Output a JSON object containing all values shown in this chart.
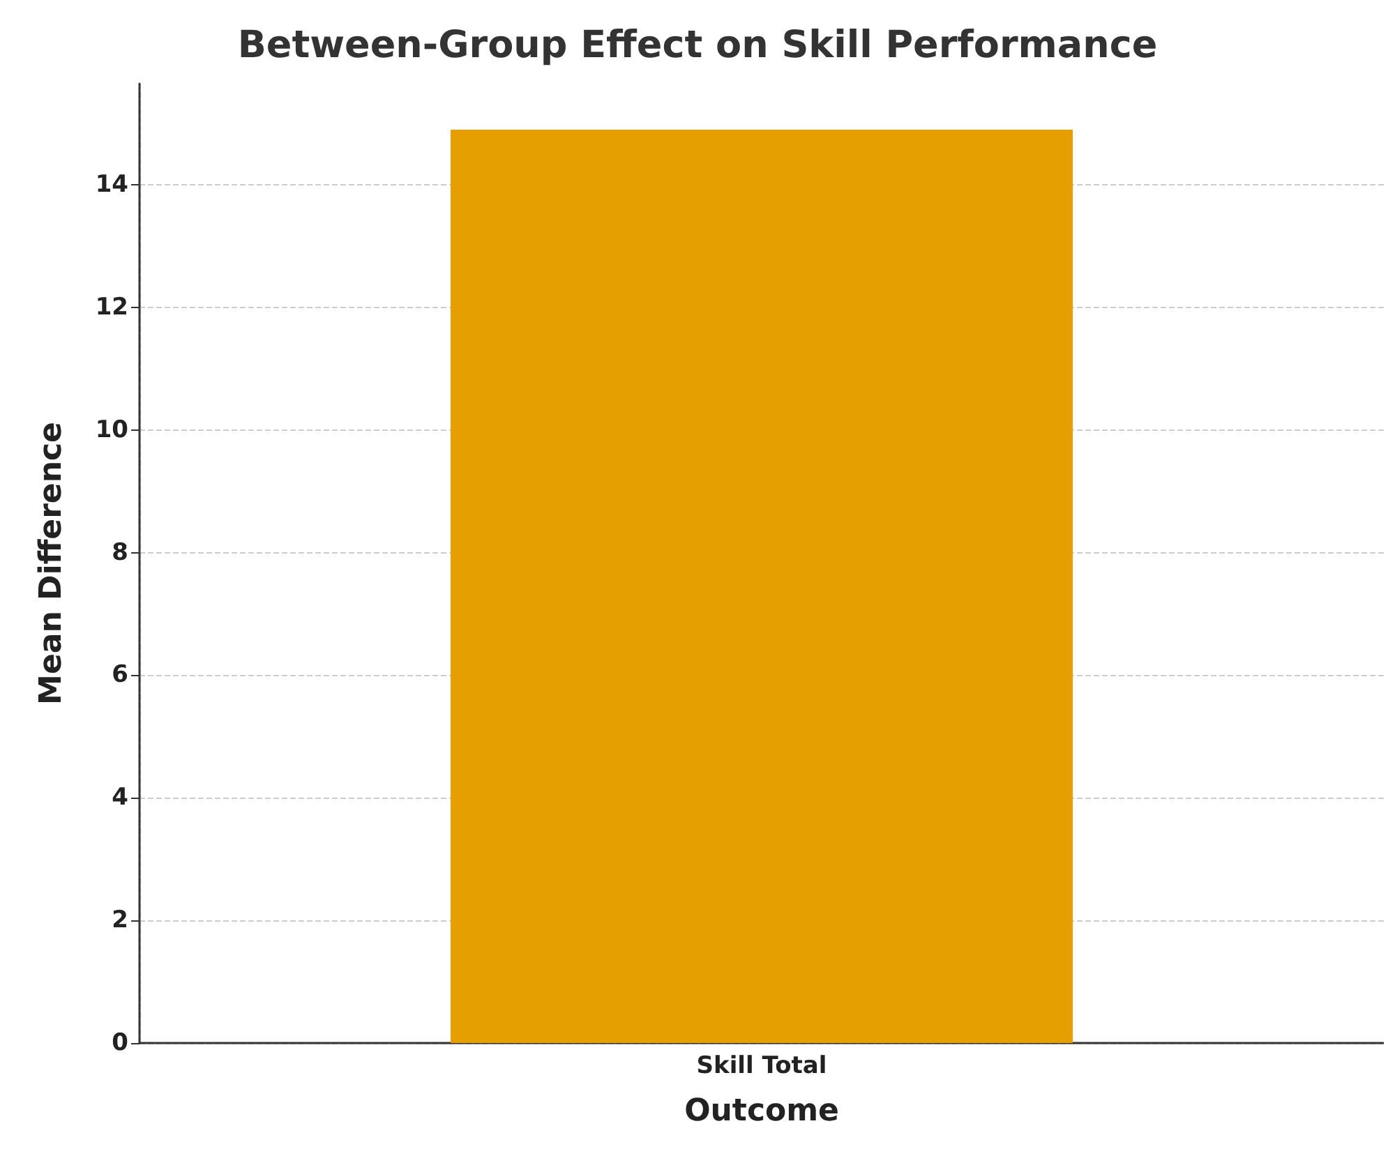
{
  "chart_data": {
    "type": "bar",
    "title": "Between-Group Effect on Skill Performance",
    "xlabel": "Outcome",
    "ylabel": "Mean Difference",
    "categories": [
      "Skill Total"
    ],
    "values": [
      14.9
    ],
    "color": "#e69f00",
    "ylim": [
      0,
      15.65
    ],
    "yticks": [
      0,
      2,
      4,
      6,
      8,
      10,
      12,
      14
    ],
    "grid": true
  }
}
